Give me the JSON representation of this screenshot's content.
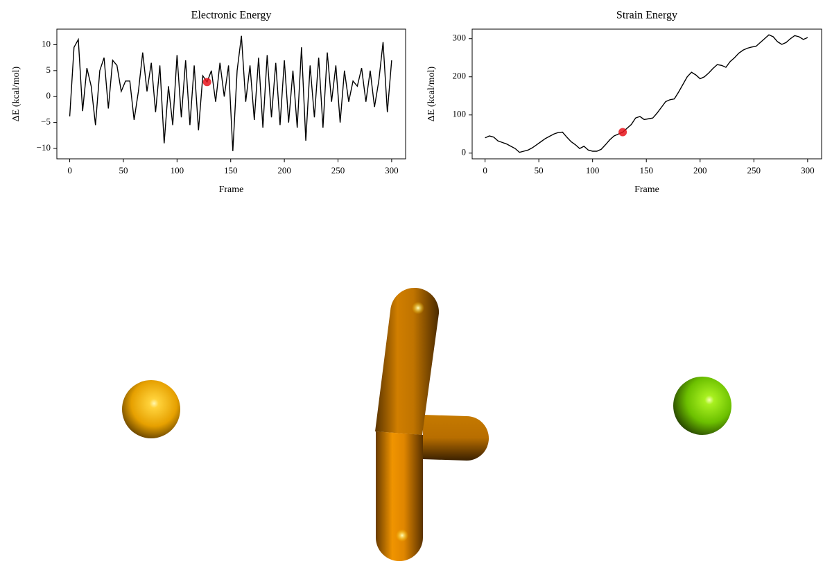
{
  "chart_data": [
    {
      "type": "line",
      "title": "Electronic Energy",
      "x_label": "Frame",
      "y_label": "ΔE (kcal/mol)",
      "color": "#000000",
      "x": [
        0,
        4,
        8,
        12,
        16,
        20,
        24,
        28,
        32,
        36,
        40,
        44,
        48,
        52,
        56,
        60,
        64,
        68,
        72,
        76,
        80,
        84,
        88,
        92,
        96,
        100,
        104,
        108,
        112,
        116,
        120,
        124,
        128,
        132,
        136,
        140,
        144,
        148,
        152,
        156,
        160,
        164,
        168,
        172,
        176,
        180,
        184,
        188,
        192,
        196,
        200,
        204,
        208,
        212,
        216,
        220,
        224,
        228,
        232,
        236,
        240,
        244,
        248,
        252,
        256,
        260,
        264,
        268,
        272,
        276,
        280,
        284,
        288,
        292,
        296,
        300
      ],
      "values": [
        -3.8,
        9.5,
        11,
        -2.8,
        5.5,
        2,
        -5.5,
        5,
        7.5,
        -2.3,
        7,
        6,
        1,
        3,
        3,
        -4.5,
        1,
        8.5,
        1,
        6.5,
        -3,
        6,
        -9,
        2,
        -5.5,
        8,
        -4,
        7,
        -5.5,
        6,
        -6.5,
        4,
        2.8,
        5,
        -1,
        6.5,
        0,
        6,
        -10.5,
        5,
        11.7,
        -1,
        6,
        -4.5,
        7.5,
        -6,
        8,
        -4,
        6.5,
        -5.5,
        7,
        -5,
        5,
        -6,
        9.5,
        -8.5,
        6,
        -4,
        7.5,
        -6,
        8.5,
        -1,
        6,
        -5,
        5,
        -1,
        3,
        2,
        5.5,
        -1,
        5,
        -2,
        3,
        10.5,
        -3,
        7
      ],
      "highlight": {
        "x": 128,
        "y": 2.8,
        "color": "#e8141c"
      },
      "xlim": [
        -12,
        313
      ],
      "xticks": [
        0,
        50,
        100,
        150,
        200,
        250,
        300
      ],
      "ylim": [
        -12,
        13
      ],
      "yticks": [
        {
          "value": -10,
          "label": "−10"
        },
        {
          "value": -5,
          "label": "−5"
        },
        0,
        5,
        10
      ]
    },
    {
      "type": "line",
      "title": "Strain Energy",
      "x_label": "Frame",
      "y_label": "ΔE (kcal/mol)",
      "color": "#000000",
      "x": [
        0,
        4,
        8,
        12,
        16,
        20,
        24,
        28,
        32,
        36,
        40,
        44,
        48,
        52,
        56,
        60,
        64,
        68,
        72,
        76,
        80,
        84,
        88,
        92,
        96,
        100,
        104,
        108,
        112,
        116,
        120,
        124,
        128,
        132,
        136,
        140,
        144,
        148,
        152,
        156,
        160,
        164,
        168,
        172,
        176,
        180,
        184,
        188,
        192,
        196,
        200,
        204,
        208,
        212,
        216,
        220,
        224,
        228,
        232,
        236,
        240,
        244,
        248,
        252,
        256,
        260,
        264,
        268,
        272,
        276,
        280,
        284,
        288,
        292,
        296,
        300
      ],
      "values": [
        40,
        45,
        42,
        32,
        28,
        24,
        18,
        12,
        2,
        5,
        8,
        14,
        22,
        30,
        38,
        44,
        50,
        54,
        55,
        42,
        30,
        22,
        12,
        18,
        8,
        5,
        5,
        10,
        22,
        35,
        45,
        50,
        55,
        65,
        75,
        92,
        96,
        88,
        90,
        92,
        105,
        120,
        135,
        140,
        142,
        160,
        180,
        200,
        212,
        205,
        195,
        200,
        210,
        222,
        232,
        230,
        225,
        240,
        250,
        262,
        270,
        275,
        278,
        280,
        290,
        300,
        310,
        305,
        292,
        285,
        290,
        300,
        308,
        305,
        298,
        303
      ],
      "highlight": {
        "x": 128,
        "y": 55,
        "color": "#e8141c"
      },
      "xlim": [
        -12,
        313
      ],
      "xticks": [
        0,
        50,
        100,
        150,
        200,
        250,
        300
      ],
      "ylim": [
        -15,
        325
      ],
      "yticks": [
        0,
        100,
        200,
        300
      ]
    }
  ]
}
